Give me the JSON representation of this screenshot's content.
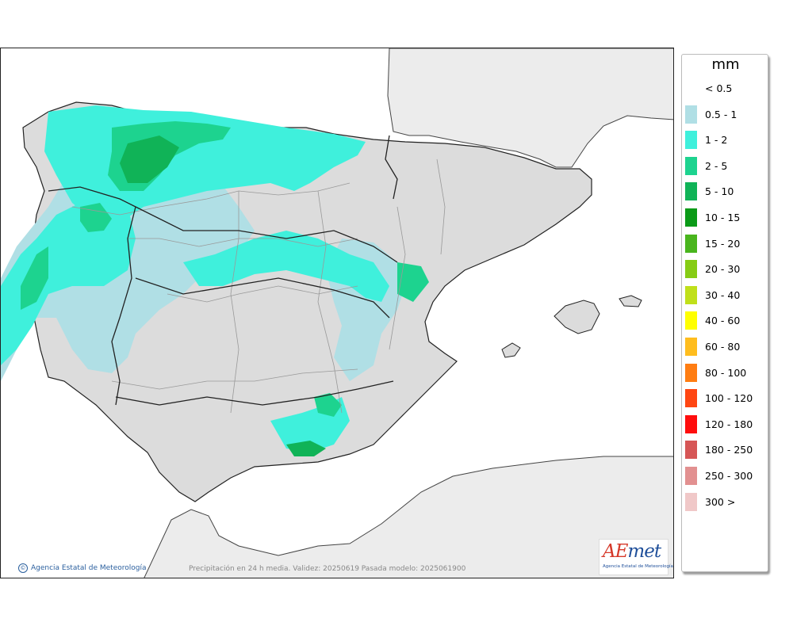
{
  "legend": {
    "unit": "mm",
    "items": [
      {
        "label": "< 0.5",
        "color": null
      },
      {
        "label": "0.5 - 1",
        "color": "#b0dfe5"
      },
      {
        "label": "1 - 2",
        "color": "#3ff0dc"
      },
      {
        "label": "2 - 5",
        "color": "#1dd38f"
      },
      {
        "label": "5 - 10",
        "color": "#10b357"
      },
      {
        "label": "10 - 15",
        "color": "#0a9a17"
      },
      {
        "label": "15 - 20",
        "color": "#49b51d"
      },
      {
        "label": "20 - 30",
        "color": "#86cc14"
      },
      {
        "label": "30 - 40",
        "color": "#c0e01a"
      },
      {
        "label": "40 - 60",
        "color": "#ffff00"
      },
      {
        "label": "60 - 80",
        "color": "#ffbd1e"
      },
      {
        "label": "80 - 100",
        "color": "#ff7d12"
      },
      {
        "label": "100 - 120",
        "color": "#ff4612"
      },
      {
        "label": "120 - 180",
        "color": "#ff0d0d"
      },
      {
        "label": "180 - 250",
        "color": "#d65656"
      },
      {
        "label": "250 - 300",
        "color": "#e29090"
      },
      {
        "label": "300 >",
        "color": "#f0c8c8"
      }
    ]
  },
  "footer": {
    "credit": "Agencia Estatal de Meteorología",
    "caption": "Precipitación en 24 h media. Validez: 20250619 Pasada modelo: 2025061900"
  },
  "logo": {
    "text_a": "AE",
    "text_b": "met",
    "subtitle": "Agencia Estatal de Meteorología"
  },
  "colors": {
    "land": "#dcdcdc",
    "foreign_land": "#ececec",
    "sea": "#ffffff",
    "border": "#222222",
    "region_border": "#999999"
  }
}
